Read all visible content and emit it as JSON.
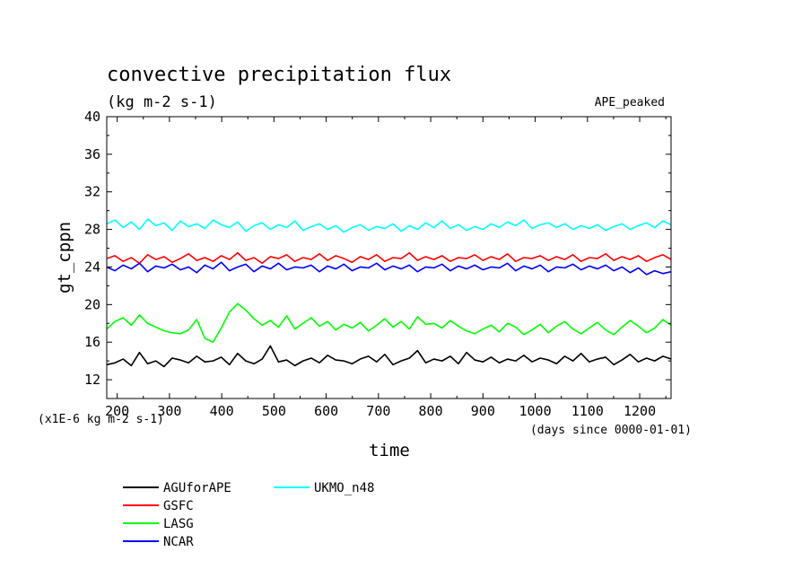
{
  "chart_data": {
    "type": "line",
    "title": "convective precipitation flux",
    "subtitle": "(kg m-2 s-1)",
    "tag": "APE_peaked",
    "ylabel": "gt_cppn",
    "xlabel": "time",
    "y_unit_note": "(x1E-6 kg m-2 s-1)",
    "x_unit_note": "(days since 0000-01-01)",
    "xlim": [
      180,
      1260
    ],
    "ylim": [
      10,
      40
    ],
    "x_ticks": [
      200,
      300,
      400,
      500,
      600,
      700,
      800,
      900,
      1000,
      1100,
      1200
    ],
    "y_ticks": [
      12,
      16,
      20,
      24,
      28,
      32,
      36,
      40
    ],
    "grid": false,
    "legend_position": "bottom-left",
    "series": [
      {
        "name": "AGUforAPE",
        "color": "#000000",
        "x_start": 180,
        "x_end": 1260,
        "values": [
          13.6,
          13.8,
          14.2,
          13.5,
          14.9,
          13.7,
          14.0,
          13.4,
          14.3,
          14.1,
          13.8,
          14.5,
          13.9,
          14.0,
          14.4,
          13.6,
          14.8,
          14.0,
          13.7,
          14.2,
          15.6,
          13.9,
          14.1,
          13.5,
          14.0,
          14.3,
          13.8,
          14.6,
          14.1,
          14.0,
          13.7,
          14.2,
          14.5,
          13.9,
          14.7,
          13.6,
          14.0,
          14.3,
          15.1,
          13.8,
          14.2,
          14.0,
          14.5,
          13.7,
          14.9,
          14.1,
          13.9,
          14.4,
          13.8,
          14.2,
          14.0,
          14.6,
          13.9,
          14.3,
          14.1,
          13.7,
          14.5,
          14.0,
          14.8,
          13.9,
          14.2,
          14.4,
          13.6,
          14.1,
          14.7,
          13.9,
          14.3,
          14.0,
          14.5,
          14.2
        ]
      },
      {
        "name": "GSFC",
        "color": "#ff0000",
        "x_start": 180,
        "x_end": 1260,
        "values": [
          24.9,
          25.2,
          24.6,
          25.0,
          24.4,
          25.3,
          24.8,
          25.1,
          24.5,
          24.9,
          25.4,
          24.7,
          25.0,
          24.6,
          25.2,
          24.8,
          25.5,
          24.7,
          25.0,
          24.4,
          25.1,
          24.9,
          25.3,
          24.6,
          25.0,
          24.8,
          25.4,
          24.7,
          25.2,
          24.9,
          24.5,
          25.1,
          24.8,
          25.3,
          24.6,
          25.0,
          24.9,
          25.5,
          24.7,
          25.1,
          24.8,
          25.2,
          24.6,
          25.0,
          24.9,
          25.3,
          24.7,
          25.1,
          24.8,
          25.4,
          24.6,
          25.0,
          24.9,
          25.2,
          24.7,
          25.1,
          24.8,
          25.3,
          24.6,
          25.0,
          24.9,
          25.4,
          24.7,
          25.1,
          24.8,
          25.2,
          24.6,
          25.0,
          25.3,
          24.8
        ]
      },
      {
        "name": "LASG",
        "color": "#00ff00",
        "x_start": 180,
        "x_end": 1260,
        "values": [
          17.4,
          18.2,
          18.6,
          17.8,
          18.9,
          18.0,
          17.6,
          17.2,
          17.0,
          16.9,
          17.3,
          18.4,
          16.4,
          16.0,
          17.5,
          19.2,
          20.1,
          19.4,
          18.5,
          17.8,
          18.3,
          17.6,
          18.8,
          17.4,
          18.0,
          18.6,
          17.7,
          18.2,
          17.3,
          17.9,
          17.5,
          18.1,
          17.2,
          17.8,
          18.5,
          17.6,
          18.2,
          17.4,
          18.7,
          17.9,
          18.0,
          17.5,
          18.3,
          17.7,
          17.2,
          16.9,
          17.4,
          17.8,
          17.1,
          18.0,
          17.6,
          16.8,
          17.3,
          17.9,
          17.0,
          17.7,
          18.2,
          17.4,
          16.9,
          17.5,
          18.1,
          17.3,
          16.8,
          17.6,
          18.3,
          17.7,
          17.0,
          17.5,
          18.4,
          17.8
        ]
      },
      {
        "name": "NCAR",
        "color": "#0000ff",
        "x_start": 180,
        "x_end": 1260,
        "values": [
          24.0,
          23.6,
          24.2,
          23.8,
          24.4,
          23.5,
          24.1,
          23.9,
          24.3,
          23.7,
          24.0,
          23.4,
          24.2,
          23.8,
          24.5,
          23.6,
          24.0,
          24.3,
          23.5,
          24.1,
          23.8,
          24.4,
          23.7,
          24.0,
          23.9,
          24.2,
          23.5,
          24.1,
          23.8,
          24.3,
          23.6,
          24.0,
          23.9,
          24.4,
          23.7,
          24.1,
          23.8,
          24.2,
          23.5,
          24.0,
          23.9,
          24.3,
          23.6,
          24.1,
          23.8,
          24.2,
          23.7,
          24.0,
          23.9,
          24.4,
          23.6,
          24.1,
          23.8,
          24.2,
          23.5,
          24.0,
          23.9,
          24.3,
          23.7,
          24.1,
          23.8,
          24.2,
          23.6,
          24.0,
          23.4,
          23.9,
          23.2,
          23.6,
          23.3,
          23.5
        ]
      },
      {
        "name": "UKMO_n48",
        "color": "#00ffff",
        "x_start": 180,
        "x_end": 1260,
        "values": [
          28.6,
          29.0,
          28.2,
          28.8,
          28.0,
          29.1,
          28.4,
          28.7,
          27.9,
          28.9,
          28.3,
          28.6,
          28.1,
          29.0,
          28.5,
          28.2,
          28.8,
          27.8,
          28.4,
          28.7,
          28.0,
          28.5,
          28.2,
          28.9,
          27.9,
          28.3,
          28.6,
          28.0,
          28.4,
          27.7,
          28.2,
          28.5,
          27.9,
          28.3,
          28.1,
          28.6,
          27.8,
          28.4,
          28.0,
          28.7,
          28.2,
          28.9,
          28.1,
          28.5,
          27.9,
          28.3,
          28.0,
          28.6,
          28.2,
          28.8,
          28.4,
          29.0,
          28.1,
          28.5,
          28.7,
          28.2,
          28.6,
          28.0,
          28.4,
          28.1,
          28.5,
          27.9,
          28.3,
          28.6,
          28.0,
          28.4,
          28.7,
          28.2,
          28.9,
          28.5
        ]
      }
    ]
  }
}
